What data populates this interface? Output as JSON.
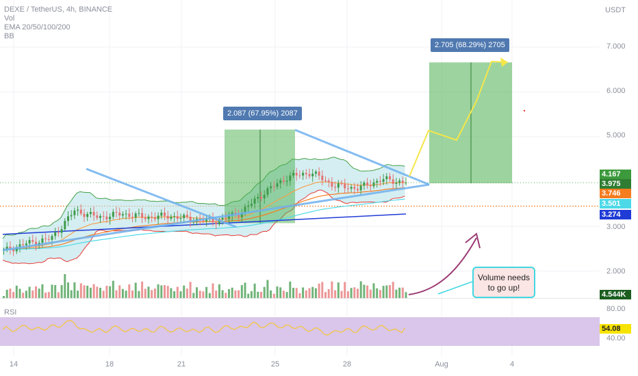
{
  "legend": {
    "symbol": "DEXE / TetherUS, 4h, BINANCE",
    "vol": "Vol",
    "ema": "EMA 20/50/100/200",
    "bb": "BB"
  },
  "rsi_label": "RSI",
  "axis_unit": "USDT",
  "y_ticks": [
    {
      "label": "7.000",
      "value": 7.0
    },
    {
      "label": "6.000",
      "value": 6.0
    },
    {
      "label": "5.000",
      "value": 5.0
    },
    {
      "label": "3.000",
      "value": 3.0
    },
    {
      "label": "2.000",
      "value": 2.0
    }
  ],
  "rsi_ticks": [
    {
      "label": "80.00",
      "value": 80
    },
    {
      "label": "40.00",
      "value": 40
    }
  ],
  "x_ticks": [
    "14",
    "18",
    "21",
    "25",
    "28",
    "Aug",
    "4"
  ],
  "price_tags": [
    {
      "label": "4.167",
      "value": 4.167,
      "color": "#3c9a3c"
    },
    {
      "label": "3.975",
      "value": 3.975,
      "color": "#2e7d32"
    },
    {
      "label": "3.746",
      "value": 3.746,
      "color": "#f57c1f"
    },
    {
      "label": "3.501",
      "value": 3.501,
      "color": "#4dd9e8"
    },
    {
      "label": "3.274",
      "value": 3.274,
      "color": "#1f3bd6"
    }
  ],
  "volume_tag": {
    "label": "4.544K",
    "color": "#1b5e20"
  },
  "rsi_tag": {
    "label": "54.08",
    "color": "#f7e300"
  },
  "measure_1": {
    "label": "2.087 (67.95%) 2087",
    "from": 3.07,
    "to": 5.16
  },
  "measure_2": {
    "label": "2.705 (68.29%) 2705",
    "from": 3.96,
    "to": 6.66
  },
  "callout": {
    "text": "Volume needs to go up!"
  },
  "colors": {
    "up": "#3f9a4a",
    "down": "#e57373",
    "bb_fill": "#b9e3e9",
    "ema20": "#f6a04b",
    "ema50": "#f57c1f",
    "ema100": "#4dd9e8",
    "ema200": "#1f3bd6",
    "trendline": "#6fb1ee",
    "projection": "#f5e64a",
    "arrow": "#9c3a73",
    "rsi_band": "#d9c6ea",
    "rsi_line": "#f5c542"
  },
  "chart_data": {
    "type": "candlestick",
    "symbol": "DEXE / TetherUS",
    "interval": "4h",
    "exchange": "BINANCE",
    "price_axis": {
      "unit": "USDT",
      "ticks": [
        2.0,
        3.0,
        5.0,
        6.0,
        7.0
      ]
    },
    "last_close": 3.975,
    "indicators": {
      "ema20": 3.746,
      "ema50": 3.501,
      "ema200": 3.274,
      "bb_upper": 4.167,
      "volume_last": "4.544K",
      "rsi_last": 54.08
    },
    "close_path": [
      {
        "day": "13",
        "close": 2.45
      },
      {
        "day": "14",
        "close": 2.62
      },
      {
        "day": "15",
        "close": 2.72
      },
      {
        "day": "16",
        "close": 3.35
      },
      {
        "day": "17",
        "close": 3.2
      },
      {
        "day": "18",
        "close": 3.28
      },
      {
        "day": "19",
        "close": 3.2
      },
      {
        "day": "20",
        "close": 3.23
      },
      {
        "day": "21",
        "close": 3.15
      },
      {
        "day": "22",
        "close": 3.12
      },
      {
        "day": "23",
        "close": 3.3
      },
      {
        "day": "24",
        "close": 3.75
      },
      {
        "day": "25",
        "close": 4.1
      },
      {
        "day": "26",
        "close": 4.2
      },
      {
        "day": "27",
        "close": 3.9
      },
      {
        "day": "28",
        "close": 3.85
      },
      {
        "day": "29",
        "close": 4.05
      },
      {
        "day": "30",
        "close": 3.975
      }
    ]
  }
}
